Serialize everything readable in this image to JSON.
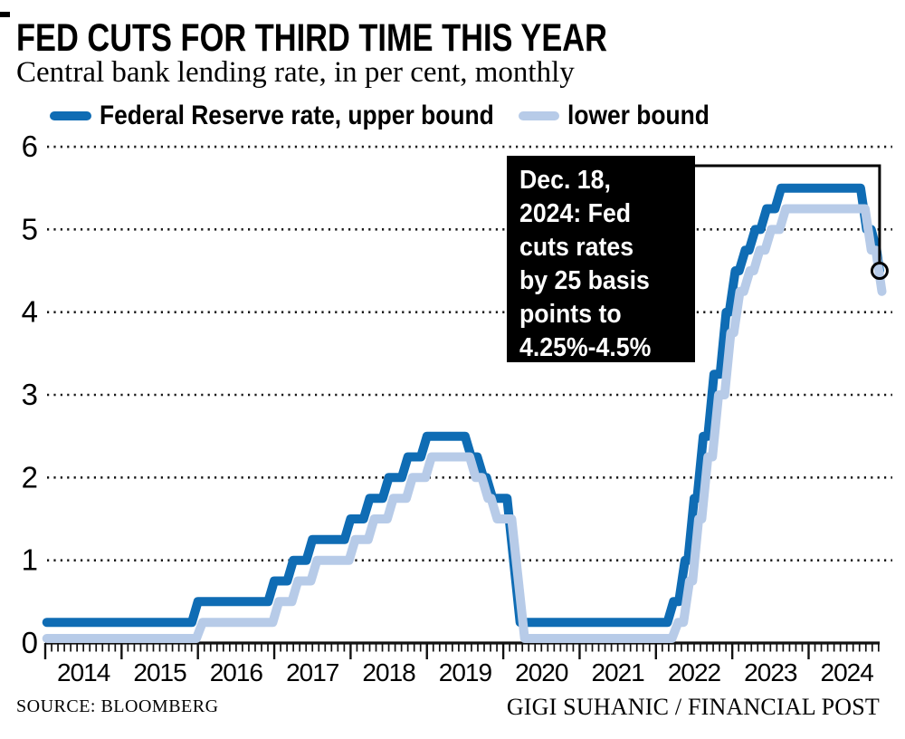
{
  "title": "FED CUTS FOR THIRD TIME THIS YEAR",
  "subtitle": "Central bank lending rate, in per cent, monthly",
  "legend": {
    "upper_label": "Federal Reserve rate, upper bound",
    "lower_label": "lower bound"
  },
  "annotation": {
    "text": "Dec. 18, 2024: Fed cuts rates by 25 basis points to 4.25%-4.5%",
    "lines": [
      "Dec. 18,",
      "2024: Fed",
      "cuts rates",
      "by 25 basis",
      "points to",
      "4.25%-4.5%"
    ]
  },
  "footer": {
    "source": "SOURCE: BLOOMBERG",
    "credit": "GIGI SUHANIC / FINANCIAL POST"
  },
  "colors": {
    "upper": "#0f6cb4",
    "lower": "#b7cbe8",
    "grid": "#1a1a1a",
    "axis": "#111111",
    "annotation_bg": "#000000",
    "annotation_text": "#ffffff"
  },
  "chart_data": {
    "type": "line",
    "title": "FED CUTS FOR THIRD TIME THIS YEAR",
    "subtitle": "Central bank lending rate, in per cent, monthly",
    "ylabel": "per cent",
    "ylim": [
      0,
      6
    ],
    "y_ticks": [
      0,
      1,
      2,
      3,
      4,
      5,
      6
    ],
    "x_years": [
      2014,
      2015,
      2016,
      2017,
      2018,
      2019,
      2020,
      2021,
      2022,
      2023,
      2024
    ],
    "x_minor_tick": "monthly",
    "grid": "dotted-horizontal",
    "legend_position": "top",
    "series": [
      {
        "name": "Federal Reserve rate, upper bound",
        "color": "#0f6cb4",
        "points": [
          [
            2014.02,
            0.25
          ],
          [
            2015.92,
            0.25
          ],
          [
            2016.0,
            0.5
          ],
          [
            2016.92,
            0.5
          ],
          [
            2017.0,
            0.75
          ],
          [
            2017.17,
            0.75
          ],
          [
            2017.25,
            1.0
          ],
          [
            2017.42,
            1.0
          ],
          [
            2017.5,
            1.25
          ],
          [
            2017.92,
            1.25
          ],
          [
            2018.0,
            1.5
          ],
          [
            2018.17,
            1.5
          ],
          [
            2018.25,
            1.75
          ],
          [
            2018.42,
            1.75
          ],
          [
            2018.5,
            2.0
          ],
          [
            2018.67,
            2.0
          ],
          [
            2018.75,
            2.25
          ],
          [
            2018.92,
            2.25
          ],
          [
            2019.0,
            2.5
          ],
          [
            2019.5,
            2.5
          ],
          [
            2019.58,
            2.25
          ],
          [
            2019.66,
            2.25
          ],
          [
            2019.74,
            2.0
          ],
          [
            2019.78,
            2.0
          ],
          [
            2019.86,
            1.75
          ],
          [
            2020.05,
            1.75
          ],
          [
            2020.22,
            0.25
          ],
          [
            2022.15,
            0.25
          ],
          [
            2022.23,
            0.5
          ],
          [
            2022.3,
            0.5
          ],
          [
            2022.38,
            1.0
          ],
          [
            2022.42,
            1.0
          ],
          [
            2022.5,
            1.75
          ],
          [
            2022.54,
            1.75
          ],
          [
            2022.62,
            2.5
          ],
          [
            2022.68,
            2.5
          ],
          [
            2022.76,
            3.25
          ],
          [
            2022.84,
            3.25
          ],
          [
            2022.92,
            4.0
          ],
          [
            2022.96,
            4.0
          ],
          [
            2023.04,
            4.5
          ],
          [
            2023.09,
            4.5
          ],
          [
            2023.17,
            4.75
          ],
          [
            2023.22,
            4.75
          ],
          [
            2023.3,
            5.0
          ],
          [
            2023.37,
            5.0
          ],
          [
            2023.45,
            5.25
          ],
          [
            2023.56,
            5.25
          ],
          [
            2023.64,
            5.5
          ],
          [
            2024.68,
            5.5
          ],
          [
            2024.76,
            5.0
          ],
          [
            2024.82,
            5.0
          ],
          [
            2024.89,
            4.75
          ],
          [
            2024.93,
            4.5
          ]
        ]
      },
      {
        "name": "lower bound",
        "color": "#b7cbe8",
        "points": [
          [
            2014.02,
            0
          ],
          [
            2015.98,
            0
          ],
          [
            2016.06,
            0.25
          ],
          [
            2016.98,
            0.25
          ],
          [
            2017.06,
            0.5
          ],
          [
            2017.23,
            0.5
          ],
          [
            2017.31,
            0.75
          ],
          [
            2017.48,
            0.75
          ],
          [
            2017.56,
            1.0
          ],
          [
            2017.98,
            1.0
          ],
          [
            2018.06,
            1.25
          ],
          [
            2018.23,
            1.25
          ],
          [
            2018.31,
            1.5
          ],
          [
            2018.48,
            1.5
          ],
          [
            2018.56,
            1.75
          ],
          [
            2018.73,
            1.75
          ],
          [
            2018.81,
            2.0
          ],
          [
            2018.98,
            2.0
          ],
          [
            2019.06,
            2.25
          ],
          [
            2019.56,
            2.25
          ],
          [
            2019.64,
            2.0
          ],
          [
            2019.72,
            2.0
          ],
          [
            2019.8,
            1.75
          ],
          [
            2019.84,
            1.75
          ],
          [
            2019.92,
            1.5
          ],
          [
            2020.11,
            1.5
          ],
          [
            2020.28,
            0
          ],
          [
            2022.21,
            0
          ],
          [
            2022.29,
            0.25
          ],
          [
            2022.36,
            0.25
          ],
          [
            2022.44,
            0.75
          ],
          [
            2022.48,
            0.75
          ],
          [
            2022.56,
            1.5
          ],
          [
            2022.6,
            1.5
          ],
          [
            2022.68,
            2.25
          ],
          [
            2022.74,
            2.25
          ],
          [
            2022.82,
            3.0
          ],
          [
            2022.9,
            3.0
          ],
          [
            2022.98,
            3.75
          ],
          [
            2023.02,
            3.75
          ],
          [
            2023.1,
            4.25
          ],
          [
            2023.15,
            4.25
          ],
          [
            2023.23,
            4.5
          ],
          [
            2023.28,
            4.5
          ],
          [
            2023.36,
            4.75
          ],
          [
            2023.43,
            4.75
          ],
          [
            2023.51,
            5.0
          ],
          [
            2023.62,
            5.0
          ],
          [
            2023.7,
            5.25
          ],
          [
            2024.74,
            5.25
          ],
          [
            2024.82,
            4.75
          ],
          [
            2024.88,
            4.75
          ],
          [
            2024.92,
            4.5
          ],
          [
            2024.96,
            4.25
          ]
        ]
      }
    ],
    "end_marker": {
      "series": "Federal Reserve rate, upper bound",
      "x": 2024.93,
      "y": 4.5
    }
  }
}
